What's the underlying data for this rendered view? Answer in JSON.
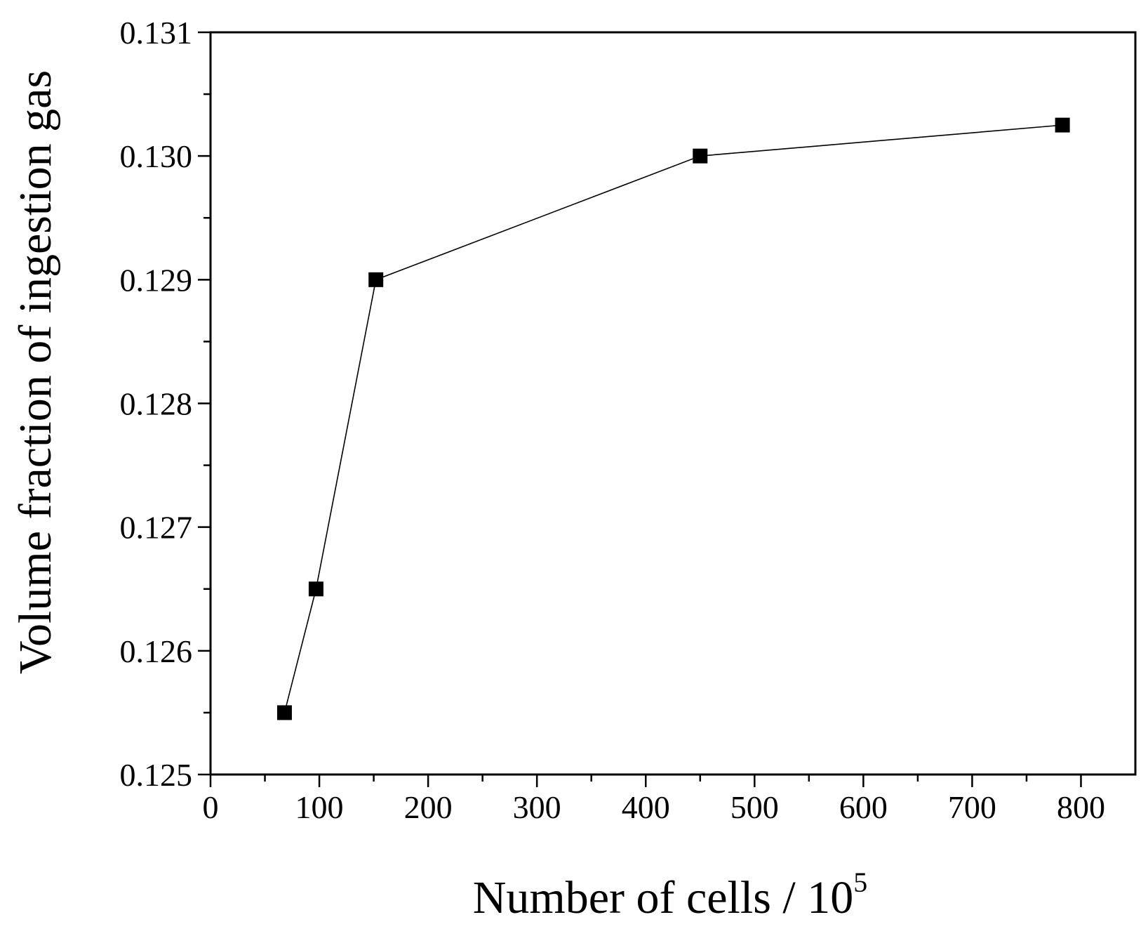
{
  "chart_data": {
    "type": "line",
    "title": "",
    "xlabel_main": "Number of cells / 10",
    "xlabel_sup": "5",
    "ylabel": "Volume fraction of ingestion gas",
    "xlim": [
      0,
      850
    ],
    "ylim": [
      0.125,
      0.131
    ],
    "x_ticks": [
      0,
      100,
      200,
      300,
      400,
      500,
      600,
      700,
      800
    ],
    "x_tick_labels": [
      "0",
      "100",
      "200",
      "300",
      "400",
      "500",
      "600",
      "700",
      "800"
    ],
    "y_ticks": [
      0.125,
      0.126,
      0.127,
      0.128,
      0.129,
      0.13,
      0.131
    ],
    "y_tick_labels": [
      "0.125",
      "0.126",
      "0.127",
      "0.128",
      "0.129",
      "0.130",
      "0.131"
    ],
    "grid": false,
    "marker": "square",
    "colors": {
      "line": "#000000",
      "marker": "#000000"
    },
    "series": [
      {
        "x": [
          68,
          97,
          152,
          450,
          783
        ],
        "y": [
          0.1255,
          0.1265,
          0.129,
          0.13,
          0.13025
        ]
      }
    ]
  }
}
